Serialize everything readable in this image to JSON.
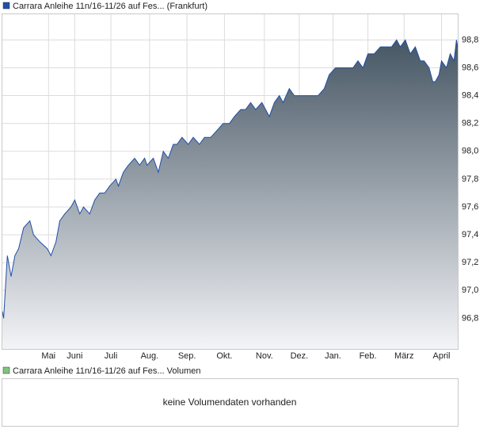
{
  "chart_data": {
    "type": "area",
    "series": [
      {
        "name": "Carrara Anleihe 11n/16-11/26 auf Fes... (Frankfurt)",
        "color": "#1f4fa8",
        "x": [
          0,
          1,
          3,
          4,
          7,
          10,
          13,
          17,
          22,
          25,
          30,
          36,
          39,
          43,
          46,
          50,
          55,
          58,
          62,
          65,
          70,
          74,
          78,
          82,
          86,
          91,
          93,
          97,
          101,
          106,
          110,
          114,
          116,
          121,
          125,
          129,
          133,
          137,
          140,
          144,
          149,
          153,
          158,
          162,
          167,
          172,
          177,
          182,
          186,
          191,
          195,
          199,
          203,
          208,
          211,
          214,
          218,
          222,
          225,
          230,
          234,
          238,
          243,
          248,
          253,
          258,
          262,
          267,
          272,
          277,
          281,
          285,
          289,
          293,
          298,
          303,
          308,
          312,
          316,
          319,
          323,
          327,
          331,
          335,
          338,
          342,
          345,
          347,
          350,
          352,
          356,
          359,
          362,
          364,
          365
        ],
        "values": [
          96.85,
          96.8,
          97.1,
          97.25,
          97.1,
          97.25,
          97.3,
          97.45,
          97.5,
          97.4,
          97.35,
          97.3,
          97.25,
          97.35,
          97.5,
          97.55,
          97.6,
          97.65,
          97.55,
          97.6,
          97.55,
          97.65,
          97.7,
          97.7,
          97.75,
          97.8,
          97.75,
          97.85,
          97.9,
          97.95,
          97.9,
          97.95,
          97.9,
          97.95,
          97.85,
          98.0,
          97.95,
          98.05,
          98.05,
          98.1,
          98.05,
          98.1,
          98.05,
          98.1,
          98.1,
          98.15,
          98.2,
          98.2,
          98.25,
          98.3,
          98.3,
          98.35,
          98.3,
          98.35,
          98.3,
          98.25,
          98.35,
          98.4,
          98.35,
          98.45,
          98.4,
          98.4,
          98.4,
          98.4,
          98.4,
          98.45,
          98.55,
          98.6,
          98.6,
          98.6,
          98.6,
          98.65,
          98.6,
          98.7,
          98.7,
          98.75,
          98.75,
          98.75,
          98.8,
          98.75,
          98.8,
          98.7,
          98.75,
          98.65,
          98.65,
          98.6,
          98.5,
          98.5,
          98.55,
          98.65,
          98.6,
          98.7,
          98.65,
          98.8,
          98.75
        ]
      }
    ],
    "xlim": [
      0,
      365
    ],
    "xticks": [
      {
        "value": 37,
        "label": "Mai"
      },
      {
        "value": 58,
        "label": "Juni"
      },
      {
        "value": 87,
        "label": "Juli"
      },
      {
        "value": 118,
        "label": "Aug."
      },
      {
        "value": 148,
        "label": "Sep."
      },
      {
        "value": 178,
        "label": "Okt."
      },
      {
        "value": 210,
        "label": "Nov."
      },
      {
        "value": 238,
        "label": "Dez."
      },
      {
        "value": 265,
        "label": "Jan."
      },
      {
        "value": 293,
        "label": "Feb."
      },
      {
        "value": 322,
        "label": "März"
      },
      {
        "value": 352,
        "label": "April"
      }
    ],
    "ylim": [
      96.58,
      98.99
    ],
    "yticks": [
      {
        "value": 96.8,
        "label": "96,8"
      },
      {
        "value": 97.0,
        "label": "97,0"
      },
      {
        "value": 97.2,
        "label": "97,2"
      },
      {
        "value": 97.4,
        "label": "97,4"
      },
      {
        "value": 97.6,
        "label": "97,6"
      },
      {
        "value": 97.8,
        "label": "97,8"
      },
      {
        "value": 98.0,
        "label": "98,0"
      },
      {
        "value": 98.2,
        "label": "98,2"
      },
      {
        "value": 98.4,
        "label": "98,4"
      },
      {
        "value": 98.6,
        "label": "98,6"
      },
      {
        "value": 98.8,
        "label": "98,8"
      }
    ],
    "grid": true
  },
  "volume_panel": {
    "legend": "Carrara Anleihe 11n/16-11/26 auf Fes... Volumen",
    "color": "#7fc47f",
    "message": "keine Volumendaten vorhanden"
  }
}
